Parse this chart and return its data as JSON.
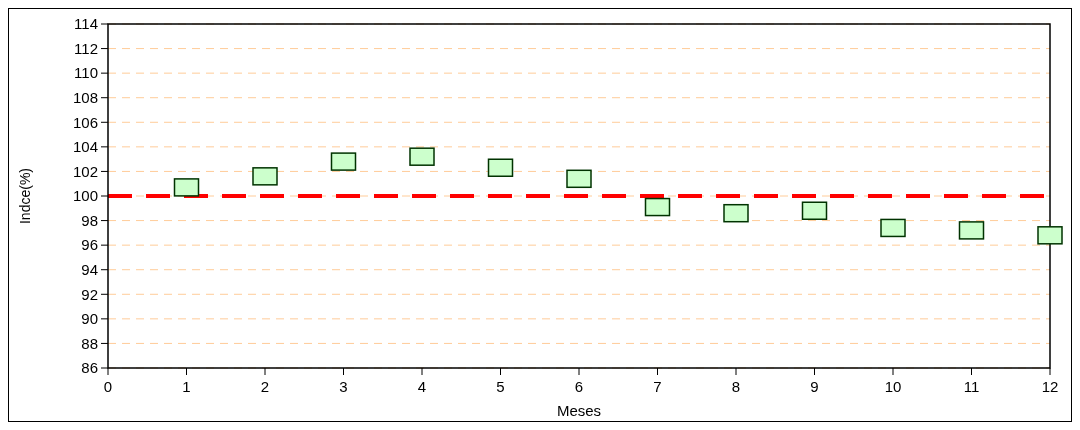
{
  "chart_data": {
    "type": "scatter",
    "xlabel": "Meses",
    "ylabel": "Indce(%)",
    "x": [
      1,
      2,
      3,
      4,
      5,
      6,
      7,
      8,
      9,
      10,
      11,
      12
    ],
    "series": [
      {
        "color": "#ccffcc",
        "values": [
          100.7,
          101.6,
          102.8,
          103.2,
          102.3,
          101.4,
          99.1,
          98.6,
          98.8,
          97.4,
          97.2,
          96.8
        ]
      }
    ],
    "marker": "square",
    "xlim": [
      0,
      12
    ],
    "xticks": [
      0,
      1,
      2,
      3,
      4,
      5,
      6,
      7,
      8,
      9,
      10,
      11,
      12
    ],
    "ylim": [
      86,
      114
    ],
    "yticks": [
      86,
      88,
      90,
      92,
      94,
      96,
      98,
      100,
      102,
      104,
      106,
      108,
      110,
      112,
      114
    ],
    "grid": "y",
    "ref_lines": [
      {
        "axis": "y",
        "value": 100,
        "color": "#ff0000",
        "line_style": "dashed"
      }
    ]
  }
}
